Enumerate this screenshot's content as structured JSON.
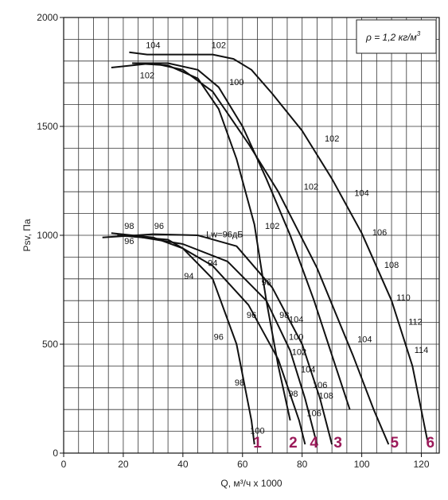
{
  "chart_data": {
    "type": "line",
    "title": "",
    "xlabel": "Q, м³/ч x 1000",
    "ylabel": "Psv, Па",
    "xlim": [
      0,
      126
    ],
    "ylim": [
      0,
      2000
    ],
    "x_ticks": [
      0,
      20,
      40,
      60,
      80,
      100,
      120
    ],
    "y_ticks": [
      0,
      500,
      1000,
      1500,
      2000
    ],
    "x_tick_labels": [
      "0",
      "20",
      "40",
      "60",
      "80",
      "100",
      "120"
    ],
    "y_tick_labels": [
      "0",
      "500",
      "1000",
      "1500",
      "2000"
    ],
    "grid": true,
    "density_note": {
      "symbol": "ρ",
      "text": " = 1,2 кг/м",
      "sup": "3"
    },
    "accent_color": "#9b1b5a",
    "series": [
      {
        "name": "1",
        "label_color": "#9b1b5a",
        "points": [
          [
            16,
            1010
          ],
          [
            30,
            990
          ],
          [
            40,
            940
          ],
          [
            50,
            800
          ],
          [
            58,
            500
          ],
          [
            63,
            150
          ],
          [
            64,
            40
          ]
        ],
        "label_at": [
          65,
          40
        ]
      },
      {
        "name": "2",
        "label_color": "#9b1b5a",
        "points": [
          [
            18,
            1000
          ],
          [
            35,
            980
          ],
          [
            50,
            860
          ],
          [
            62,
            680
          ],
          [
            72,
            430
          ],
          [
            79,
            150
          ],
          [
            81,
            40
          ]
        ],
        "label_at": [
          77,
          40
        ]
      },
      {
        "name": "4",
        "label_color": "#9b1b5a",
        "points": [
          [
            22,
            1000
          ],
          [
            40,
            960
          ],
          [
            55,
            880
          ],
          [
            68,
            700
          ],
          [
            76,
            470
          ],
          [
            81,
            250
          ],
          [
            85,
            40
          ]
        ],
        "label_at": [
          84,
          40
        ]
      },
      {
        "name": "3",
        "label_color": "#9b1b5a",
        "points": [
          [
            13,
            990
          ],
          [
            30,
            1005
          ],
          [
            45,
            1000
          ],
          [
            58,
            950
          ],
          [
            70,
            760
          ],
          [
            80,
            500
          ],
          [
            86,
            250
          ],
          [
            90,
            40
          ]
        ],
        "label_at": [
          92,
          40
        ]
      },
      {
        "name": "5",
        "label_color": "#9b1b5a",
        "points": [
          [
            16,
            1770
          ],
          [
            30,
            1790
          ],
          [
            40,
            1760
          ],
          [
            50,
            1660
          ],
          [
            62,
            1420
          ],
          [
            72,
            1200
          ],
          [
            85,
            850
          ],
          [
            97,
            450
          ],
          [
            104,
            200
          ],
          [
            109,
            40
          ]
        ],
        "label_at": [
          111,
          40
        ]
      },
      {
        "name": "6",
        "label_color": "#9b1b5a",
        "points": [
          [
            22,
            1840
          ],
          [
            28,
            1830
          ],
          [
            40,
            1830
          ],
          [
            50,
            1830
          ],
          [
            57,
            1810
          ],
          [
            63,
            1760
          ],
          [
            70,
            1650
          ],
          [
            80,
            1480
          ],
          [
            90,
            1260
          ],
          [
            100,
            1010
          ],
          [
            110,
            700
          ],
          [
            117,
            400
          ],
          [
            122,
            60
          ]
        ],
        "label_at": [
          123,
          40
        ]
      }
    ],
    "upper_left_curves": [
      {
        "points": [
          [
            23,
            1790
          ],
          [
            35,
            1780
          ],
          [
            45,
            1720
          ],
          [
            52,
            1580
          ],
          [
            58,
            1350
          ],
          [
            64,
            1050
          ],
          [
            68,
            700
          ],
          [
            72,
            400
          ],
          [
            76,
            150
          ]
        ]
      },
      {
        "points": [
          [
            23,
            1790
          ],
          [
            35,
            1790
          ],
          [
            45,
            1760
          ],
          [
            52,
            1680
          ],
          [
            60,
            1500
          ],
          [
            68,
            1260
          ],
          [
            76,
            1000
          ],
          [
            84,
            700
          ],
          [
            90,
            450
          ],
          [
            96,
            200
          ]
        ]
      }
    ],
    "annotations": [
      {
        "x": 30,
        "y": 1860,
        "text": "104"
      },
      {
        "x": 52,
        "y": 1860,
        "text": "102"
      },
      {
        "x": 28,
        "y": 1720,
        "text": "102"
      },
      {
        "x": 58,
        "y": 1690,
        "text": "100"
      },
      {
        "x": 90,
        "y": 1430,
        "text": "102"
      },
      {
        "x": 83,
        "y": 1210,
        "text": "102"
      },
      {
        "x": 100,
        "y": 1180,
        "text": "104"
      },
      {
        "x": 70,
        "y": 1030,
        "text": "102"
      },
      {
        "x": 106,
        "y": 1000,
        "text": "106"
      },
      {
        "x": 110,
        "y": 850,
        "text": "108"
      },
      {
        "x": 114,
        "y": 700,
        "text": "110"
      },
      {
        "x": 118,
        "y": 590,
        "text": "112"
      },
      {
        "x": 120,
        "y": 460,
        "text": "114"
      },
      {
        "x": 22,
        "y": 1030,
        "text": "98"
      },
      {
        "x": 32,
        "y": 1030,
        "text": "96"
      },
      {
        "x": 22,
        "y": 960,
        "text": "96"
      },
      {
        "x": 54,
        "y": 990,
        "text": "Lw=96дБ"
      },
      {
        "x": 50,
        "y": 860,
        "text": "94"
      },
      {
        "x": 42,
        "y": 800,
        "text": "94"
      },
      {
        "x": 68,
        "y": 770,
        "text": "96"
      },
      {
        "x": 63,
        "y": 620,
        "text": "96"
      },
      {
        "x": 74,
        "y": 620,
        "text": "98"
      },
      {
        "x": 78,
        "y": 600,
        "text": "104"
      },
      {
        "x": 52,
        "y": 520,
        "text": "96"
      },
      {
        "x": 78,
        "y": 520,
        "text": "100"
      },
      {
        "x": 79,
        "y": 450,
        "text": "102"
      },
      {
        "x": 101,
        "y": 510,
        "text": "104"
      },
      {
        "x": 82,
        "y": 370,
        "text": "104"
      },
      {
        "x": 86,
        "y": 300,
        "text": "106"
      },
      {
        "x": 88,
        "y": 250,
        "text": "108"
      },
      {
        "x": 77,
        "y": 260,
        "text": "98"
      },
      {
        "x": 59,
        "y": 310,
        "text": "98"
      },
      {
        "x": 84,
        "y": 170,
        "text": "106"
      },
      {
        "x": 65,
        "y": 90,
        "text": "100"
      }
    ]
  }
}
